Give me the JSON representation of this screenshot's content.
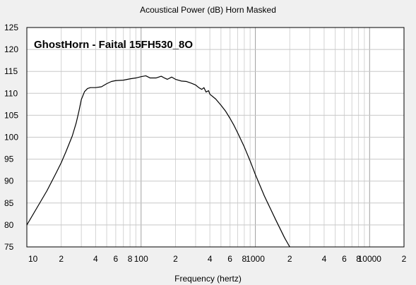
{
  "chart_data": {
    "type": "line",
    "title": "Acoustical Power (dB)   Horn   Masked",
    "overlay_label": "GhostHorn - Faital 15FH530_8O",
    "xlabel": "Frequency (hertz)",
    "ylabel": "",
    "x_scale": "log",
    "xlim": [
      10,
      20000
    ],
    "ylim": [
      75,
      125
    ],
    "y_ticks": [
      75,
      80,
      85,
      90,
      95,
      100,
      105,
      110,
      115,
      120,
      125
    ],
    "x_tick_values": [
      10,
      20,
      40,
      60,
      80,
      100,
      200,
      400,
      600,
      800,
      1000,
      2000,
      4000,
      6000,
      8000,
      10000,
      20000
    ],
    "x_tick_labels": [
      "10",
      "2",
      "4",
      "6",
      "8",
      "100",
      "2",
      "4",
      "6",
      "8",
      "1000",
      "2",
      "4",
      "6",
      "8",
      "10000",
      "2"
    ],
    "grid": true,
    "series": [
      {
        "color": "#000000",
        "points": [
          [
            10,
            80.0
          ],
          [
            12,
            83.5
          ],
          [
            15,
            87.8
          ],
          [
            18,
            91.8
          ],
          [
            20,
            94.2
          ],
          [
            22,
            96.7
          ],
          [
            25,
            100.3
          ],
          [
            27,
            103.2
          ],
          [
            28.5,
            105.8
          ],
          [
            30,
            108.6
          ],
          [
            32,
            110.4
          ],
          [
            34,
            111.1
          ],
          [
            36,
            111.3
          ],
          [
            40,
            111.3
          ],
          [
            45,
            111.5
          ],
          [
            50,
            112.2
          ],
          [
            55,
            112.7
          ],
          [
            60,
            112.9
          ],
          [
            70,
            113.0
          ],
          [
            80,
            113.3
          ],
          [
            90,
            113.5
          ],
          [
            100,
            113.8
          ],
          [
            110,
            114.0
          ],
          [
            120,
            113.5
          ],
          [
            135,
            113.5
          ],
          [
            150,
            113.9
          ],
          [
            160,
            113.5
          ],
          [
            170,
            113.2
          ],
          [
            185,
            113.7
          ],
          [
            200,
            113.2
          ],
          [
            225,
            112.8
          ],
          [
            250,
            112.7
          ],
          [
            275,
            112.3
          ],
          [
            300,
            111.9
          ],
          [
            320,
            111.3
          ],
          [
            340,
            110.9
          ],
          [
            355,
            111.3
          ],
          [
            370,
            110.3
          ],
          [
            390,
            110.6
          ],
          [
            400,
            109.8
          ],
          [
            450,
            108.7
          ],
          [
            500,
            107.3
          ],
          [
            550,
            105.9
          ],
          [
            600,
            104.3
          ],
          [
            650,
            102.7
          ],
          [
            700,
            101.0
          ],
          [
            800,
            97.8
          ],
          [
            900,
            94.6
          ],
          [
            1000,
            91.5
          ],
          [
            1200,
            86.6
          ],
          [
            1500,
            81.3
          ],
          [
            1800,
            77.1
          ],
          [
            2000,
            75.0
          ]
        ]
      }
    ]
  }
}
